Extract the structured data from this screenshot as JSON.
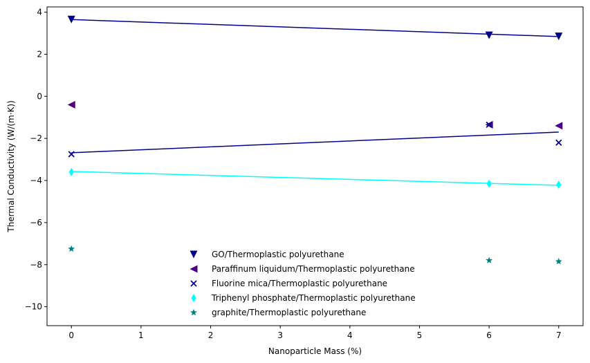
{
  "chart_data": {
    "type": "scatter",
    "xlabel": "Nanoparticle Mass (%)",
    "ylabel": "Thermal Conductivity (W/(m·K))",
    "xlim": [
      -0.35,
      7.35
    ],
    "ylim": [
      -10.9,
      4.25
    ],
    "xticks": [
      0,
      1,
      2,
      3,
      4,
      5,
      6,
      7
    ],
    "yticks": [
      -10,
      -8,
      -6,
      -4,
      -2,
      0,
      2,
      4
    ],
    "xtick_labels": [
      "0",
      "1",
      "2",
      "3",
      "4",
      "5",
      "6",
      "7"
    ],
    "ytick_labels": [
      "−10",
      "−8",
      "−6",
      "−4",
      "−2",
      "0",
      "2",
      "4"
    ],
    "grid": false,
    "legend_position": "bottom-center",
    "series": [
      {
        "name": "GO/Thermoplastic polyurethane",
        "marker": "triangle-down",
        "color": "#00008b",
        "x": [
          0,
          6,
          7
        ],
        "y": [
          3.65,
          2.9,
          2.85
        ],
        "fit_line": {
          "x": [
            0,
            7
          ],
          "y": [
            3.65,
            2.84
          ],
          "color": "#00008b"
        }
      },
      {
        "name": "Paraffinum liquidum/Thermoplastic polyurethane",
        "marker": "triangle-left",
        "color": "#4b0082",
        "x": [
          0,
          6,
          7
        ],
        "y": [
          -0.4,
          -1.35,
          -1.4
        ]
      },
      {
        "name": "Fluorine mica/Thermoplastic polyurethane",
        "marker": "x",
        "color": "#00008b",
        "x": [
          0,
          6,
          7
        ],
        "y": [
          -2.75,
          -1.35,
          -2.2
        ],
        "fit_line": {
          "x": [
            0,
            7
          ],
          "y": [
            -2.68,
            -1.7
          ],
          "color": "#00008b"
        }
      },
      {
        "name": "Triphenyl phosphate/Thermoplastic polyurethane",
        "marker": "thin-diamond",
        "color": "#00ffff",
        "x": [
          0,
          6,
          7
        ],
        "y": [
          -3.6,
          -4.15,
          -4.2
        ],
        "fit_line": {
          "x": [
            0,
            7
          ],
          "y": [
            -3.57,
            -4.23
          ],
          "color": "#00ffff"
        }
      },
      {
        "name": "graphite/Thermoplastic polyurethane",
        "marker": "star",
        "color": "#008080",
        "x": [
          0,
          6,
          7
        ],
        "y": [
          -7.25,
          -7.8,
          -7.85
        ]
      }
    ]
  }
}
